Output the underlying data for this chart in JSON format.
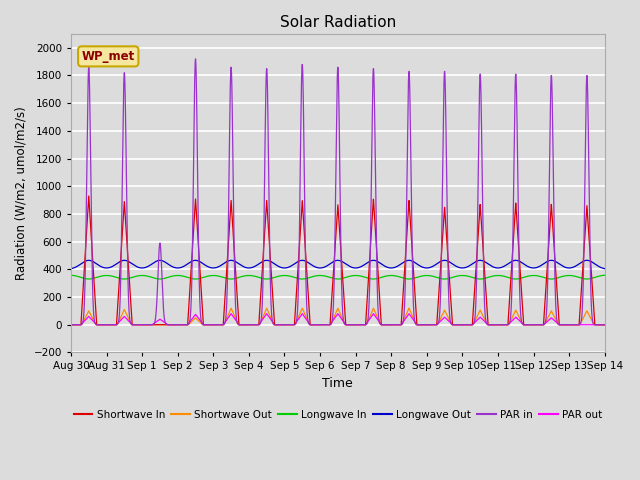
{
  "title": "Solar Radiation",
  "xlabel": "Time",
  "ylabel": "Radiation (W/m2, umol/m2/s)",
  "ylim": [
    -200,
    2100
  ],
  "yticks": [
    -200,
    0,
    200,
    400,
    600,
    800,
    1000,
    1200,
    1400,
    1600,
    1800,
    2000
  ],
  "bg_color": "#dcdcdc",
  "plot_bg_color": "#dcdcdc",
  "grid_color": "white",
  "annotation_text": "WP_met",
  "annotation_color": "#8B0000",
  "annotation_bg": "#f5e6a0",
  "annotation_border": "#c8a800",
  "series_labels": [
    "Shortwave In",
    "Shortwave Out",
    "Longwave In",
    "Longwave Out",
    "PAR in",
    "PAR out"
  ],
  "series_colors": [
    "#dd0000",
    "#ff8c00",
    "#00cc00",
    "#0000cc",
    "#9933cc",
    "#ff00ff"
  ],
  "x_tick_labels": [
    "Aug 30",
    "Aug 31",
    "Sep 1",
    "Sep 2",
    "Sep 3",
    "Sep 4",
    "Sep 5",
    "Sep 6",
    "Sep 7",
    "Sep 8",
    "Sep 9",
    "Sep 10",
    "Sep 11",
    "Sep 12",
    "Sep 13",
    "Sep 14"
  ],
  "n_days": 15,
  "sw_in_peaks": [
    930,
    890,
    0,
    910,
    900,
    900,
    900,
    870,
    910,
    900,
    850,
    870,
    880,
    870,
    860
  ],
  "sw_out_peaks": [
    100,
    110,
    0,
    50,
    120,
    120,
    120,
    120,
    120,
    120,
    105,
    105,
    105,
    100,
    100
  ],
  "par_in_peaks": [
    1860,
    1820,
    590,
    1920,
    1860,
    1850,
    1880,
    1860,
    1850,
    1830,
    1830,
    1810,
    1810,
    1800,
    1800
  ],
  "par_out_peaks": [
    60,
    60,
    40,
    75,
    80,
    80,
    80,
    80,
    80,
    80,
    55,
    55,
    55,
    50,
    0
  ],
  "lw_in_base": 360,
  "lw_in_amp": -30,
  "lw_out_base": 400,
  "lw_out_amp": 65
}
